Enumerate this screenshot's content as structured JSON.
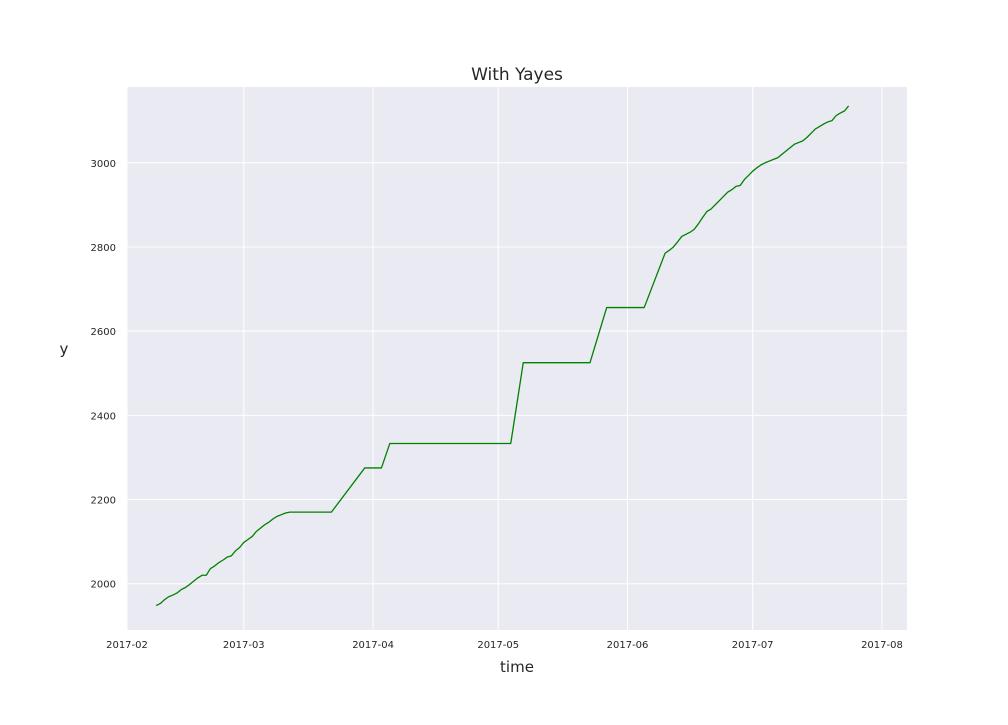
{
  "colors": {
    "plot_background": "#eaeaf2",
    "grid": "#ffffff",
    "line": "#008000"
  },
  "chart_data": {
    "type": "line",
    "title": "With Yayes",
    "xlabel": "time",
    "ylabel": "y",
    "grid": true,
    "xlim": [
      "2017-02-01",
      "2017-08-07"
    ],
    "ylim": [
      1890,
      3180
    ],
    "x_ticks": [
      {
        "value": "2017-02-01",
        "label": "2017-02"
      },
      {
        "value": "2017-03-01",
        "label": "2017-03"
      },
      {
        "value": "2017-04-01",
        "label": "2017-04"
      },
      {
        "value": "2017-05-01",
        "label": "2017-05"
      },
      {
        "value": "2017-06-01",
        "label": "2017-06"
      },
      {
        "value": "2017-07-01",
        "label": "2017-07"
      },
      {
        "value": "2017-08-01",
        "label": "2017-08"
      }
    ],
    "y_ticks": [
      {
        "value": 2000,
        "label": "2000"
      },
      {
        "value": 2200,
        "label": "2200"
      },
      {
        "value": 2400,
        "label": "2400"
      },
      {
        "value": 2600,
        "label": "2600"
      },
      {
        "value": 2800,
        "label": "2800"
      },
      {
        "value": 3000,
        "label": "3000"
      }
    ],
    "series": [
      {
        "name": "y",
        "points": [
          [
            "2017-02-08",
            1948
          ],
          [
            "2017-02-09",
            1953
          ],
          [
            "2017-02-10",
            1962
          ],
          [
            "2017-02-11",
            1969
          ],
          [
            "2017-02-12",
            1973
          ],
          [
            "2017-02-13",
            1978
          ],
          [
            "2017-02-14",
            1986
          ],
          [
            "2017-02-15",
            1991
          ],
          [
            "2017-02-16",
            1998
          ],
          [
            "2017-02-17",
            2006
          ],
          [
            "2017-02-18",
            2014
          ],
          [
            "2017-02-19",
            2020
          ],
          [
            "2017-02-20",
            2020
          ],
          [
            "2017-02-21",
            2036
          ],
          [
            "2017-02-22",
            2042
          ],
          [
            "2017-02-23",
            2050
          ],
          [
            "2017-02-24",
            2056
          ],
          [
            "2017-02-25",
            2063
          ],
          [
            "2017-02-26",
            2066
          ],
          [
            "2017-02-27",
            2078
          ],
          [
            "2017-02-28",
            2086
          ],
          [
            "2017-03-01",
            2098
          ],
          [
            "2017-03-02",
            2105
          ],
          [
            "2017-03-03",
            2112
          ],
          [
            "2017-03-04",
            2124
          ],
          [
            "2017-03-05",
            2132
          ],
          [
            "2017-03-06",
            2140
          ],
          [
            "2017-03-07",
            2146
          ],
          [
            "2017-03-08",
            2154
          ],
          [
            "2017-03-09",
            2160
          ],
          [
            "2017-03-10",
            2164
          ],
          [
            "2017-03-11",
            2168
          ],
          [
            "2017-03-12",
            2170
          ],
          [
            "2017-03-22",
            2170
          ],
          [
            "2017-03-30",
            2275
          ],
          [
            "2017-04-03",
            2275
          ],
          [
            "2017-04-05",
            2333
          ],
          [
            "2017-05-04",
            2333
          ],
          [
            "2017-05-07",
            2525
          ],
          [
            "2017-05-23",
            2525
          ],
          [
            "2017-05-27",
            2656
          ],
          [
            "2017-06-05",
            2656
          ],
          [
            "2017-06-10",
            2785
          ],
          [
            "2017-06-11",
            2792
          ],
          [
            "2017-06-12",
            2800
          ],
          [
            "2017-06-13",
            2812
          ],
          [
            "2017-06-14",
            2825
          ],
          [
            "2017-06-15",
            2830
          ],
          [
            "2017-06-16",
            2835
          ],
          [
            "2017-06-17",
            2842
          ],
          [
            "2017-06-18",
            2855
          ],
          [
            "2017-06-19",
            2870
          ],
          [
            "2017-06-20",
            2884
          ],
          [
            "2017-06-21",
            2890
          ],
          [
            "2017-06-22",
            2900
          ],
          [
            "2017-06-23",
            2910
          ],
          [
            "2017-06-24",
            2920
          ],
          [
            "2017-06-25",
            2930
          ],
          [
            "2017-06-26",
            2936
          ],
          [
            "2017-06-27",
            2944
          ],
          [
            "2017-06-28",
            2946
          ],
          [
            "2017-06-29",
            2960
          ],
          [
            "2017-06-30",
            2970
          ],
          [
            "2017-07-01",
            2980
          ],
          [
            "2017-07-02",
            2988
          ],
          [
            "2017-07-03",
            2995
          ],
          [
            "2017-07-04",
            3000
          ],
          [
            "2017-07-05",
            3004
          ],
          [
            "2017-07-06",
            3008
          ],
          [
            "2017-07-07",
            3012
          ],
          [
            "2017-07-08",
            3020
          ],
          [
            "2017-07-09",
            3028
          ],
          [
            "2017-07-10",
            3036
          ],
          [
            "2017-07-11",
            3044
          ],
          [
            "2017-07-12",
            3048
          ],
          [
            "2017-07-13",
            3052
          ],
          [
            "2017-07-14",
            3060
          ],
          [
            "2017-07-15",
            3070
          ],
          [
            "2017-07-16",
            3080
          ],
          [
            "2017-07-17",
            3086
          ],
          [
            "2017-07-18",
            3092
          ],
          [
            "2017-07-19",
            3097
          ],
          [
            "2017-07-20",
            3100
          ],
          [
            "2017-07-21",
            3112
          ],
          [
            "2017-07-22",
            3118
          ],
          [
            "2017-07-23",
            3123
          ],
          [
            "2017-07-24",
            3135
          ]
        ]
      }
    ]
  }
}
